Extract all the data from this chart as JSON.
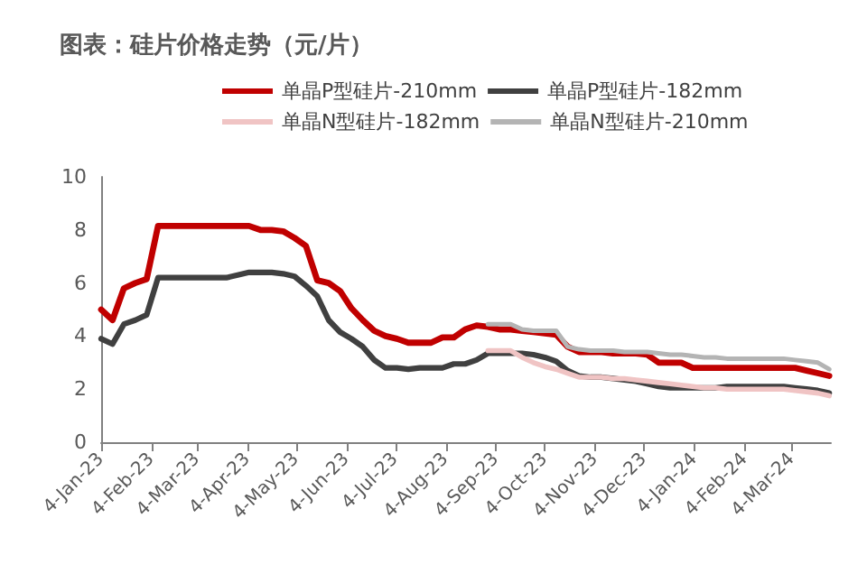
{
  "chart_data": {
    "type": "line",
    "title": "图表：硅片价格走势（元/片）",
    "x": [
      "2023-01-04",
      "2023-01-11",
      "2023-01-18",
      "2023-01-25",
      "2023-02-01",
      "2023-02-08",
      "2023-02-15",
      "2023-02-22",
      "2023-03-01",
      "2023-03-08",
      "2023-03-15",
      "2023-03-22",
      "2023-03-29",
      "2023-04-05",
      "2023-04-12",
      "2023-04-19",
      "2023-04-26",
      "2023-05-03",
      "2023-05-10",
      "2023-05-17",
      "2023-05-24",
      "2023-05-31",
      "2023-06-07",
      "2023-06-14",
      "2023-06-21",
      "2023-06-28",
      "2023-07-05",
      "2023-07-12",
      "2023-07-19",
      "2023-07-26",
      "2023-08-02",
      "2023-08-09",
      "2023-08-16",
      "2023-08-23",
      "2023-08-30",
      "2023-09-06",
      "2023-09-13",
      "2023-09-20",
      "2023-09-27",
      "2023-10-04",
      "2023-10-11",
      "2023-10-18",
      "2023-10-25",
      "2023-11-01",
      "2023-11-08",
      "2023-11-15",
      "2023-11-22",
      "2023-11-29",
      "2023-12-06",
      "2023-12-13",
      "2023-12-20",
      "2023-12-27",
      "2024-01-03",
      "2024-01-10",
      "2024-01-17",
      "2024-01-24",
      "2024-01-31",
      "2024-02-07",
      "2024-02-14",
      "2024-02-21",
      "2024-02-28",
      "2024-03-06",
      "2024-03-13",
      "2024-03-20",
      "2024-03-27"
    ],
    "series": [
      {
        "name": "单晶P型硅片-210mm",
        "color": "#c00000",
        "values": [
          5.0,
          4.6,
          5.8,
          6.0,
          6.15,
          8.15,
          8.15,
          8.15,
          8.15,
          8.15,
          8.15,
          8.15,
          8.15,
          8.15,
          8.0,
          8.0,
          7.95,
          7.7,
          7.4,
          6.1,
          6.0,
          5.7,
          5.05,
          4.6,
          4.2,
          4.0,
          3.9,
          3.75,
          3.75,
          3.75,
          3.95,
          3.95,
          4.25,
          4.4,
          4.35,
          4.25,
          4.25,
          4.2,
          4.15,
          4.1,
          4.05,
          3.6,
          3.4,
          3.4,
          3.4,
          3.35,
          3.35,
          3.35,
          3.3,
          3.0,
          3.0,
          3.0,
          2.8,
          2.8,
          2.8,
          2.8,
          2.8,
          2.8,
          2.8,
          2.8,
          2.8,
          2.8,
          2.7,
          2.6,
          2.5
        ]
      },
      {
        "name": "单晶P型硅片-182mm",
        "color": "#404040",
        "values": [
          3.9,
          3.7,
          4.45,
          4.6,
          4.8,
          6.2,
          6.2,
          6.2,
          6.2,
          6.2,
          6.2,
          6.2,
          6.3,
          6.4,
          6.4,
          6.4,
          6.35,
          6.25,
          5.9,
          5.5,
          4.6,
          4.15,
          3.9,
          3.6,
          3.1,
          2.8,
          2.8,
          2.75,
          2.8,
          2.8,
          2.8,
          2.95,
          2.95,
          3.1,
          3.35,
          3.35,
          3.35,
          3.35,
          3.3,
          3.2,
          3.05,
          2.7,
          2.5,
          2.45,
          2.45,
          2.4,
          2.35,
          2.3,
          2.2,
          2.1,
          2.05,
          2.05,
          2.05,
          2.05,
          2.05,
          2.1,
          2.1,
          2.1,
          2.1,
          2.1,
          2.1,
          2.05,
          2.0,
          1.95,
          1.85
        ]
      },
      {
        "name": "单晶N型硅片-182mm",
        "color": "#f0c4c4",
        "values": [
          null,
          null,
          null,
          null,
          null,
          null,
          null,
          null,
          null,
          null,
          null,
          null,
          null,
          null,
          null,
          null,
          null,
          null,
          null,
          null,
          null,
          null,
          null,
          null,
          null,
          null,
          null,
          null,
          null,
          null,
          null,
          null,
          null,
          null,
          3.45,
          3.45,
          3.45,
          3.2,
          3.0,
          2.85,
          2.75,
          2.6,
          2.45,
          2.45,
          2.45,
          2.4,
          2.4,
          2.35,
          2.3,
          2.25,
          2.2,
          2.15,
          2.1,
          2.05,
          2.05,
          2.0,
          2.0,
          2.0,
          2.0,
          2.0,
          2.0,
          1.95,
          1.9,
          1.85,
          1.75
        ]
      },
      {
        "name": "单晶N型硅片-210mm",
        "color": "#b4b4b4",
        "values": [
          null,
          null,
          null,
          null,
          null,
          null,
          null,
          null,
          null,
          null,
          null,
          null,
          null,
          null,
          null,
          null,
          null,
          null,
          null,
          null,
          null,
          null,
          null,
          null,
          null,
          null,
          null,
          null,
          null,
          null,
          null,
          null,
          null,
          null,
          4.45,
          4.45,
          4.45,
          4.25,
          4.2,
          4.2,
          4.2,
          3.6,
          3.5,
          3.45,
          3.45,
          3.45,
          3.4,
          3.4,
          3.4,
          3.35,
          3.3,
          3.3,
          3.25,
          3.2,
          3.2,
          3.15,
          3.15,
          3.15,
          3.15,
          3.15,
          3.15,
          3.1,
          3.05,
          3.0,
          2.75
        ]
      }
    ],
    "xlim": [
      "2023-01-04",
      "2024-03-28"
    ],
    "xticks": [
      {
        "value": "2023-01-04",
        "label": "4-Jan-23"
      },
      {
        "value": "2023-02-04",
        "label": "4-Feb-23"
      },
      {
        "value": "2023-03-04",
        "label": "4-Mar-23"
      },
      {
        "value": "2023-04-04",
        "label": "4-Apr-23"
      },
      {
        "value": "2023-05-04",
        "label": "4-May-23"
      },
      {
        "value": "2023-06-04",
        "label": "4-Jun-23"
      },
      {
        "value": "2023-07-04",
        "label": "4-Jul-23"
      },
      {
        "value": "2023-08-04",
        "label": "4-Aug-23"
      },
      {
        "value": "2023-09-04",
        "label": "4-Sep-23"
      },
      {
        "value": "2023-10-04",
        "label": "4-Oct-23"
      },
      {
        "value": "2023-11-04",
        "label": "4-Nov-23"
      },
      {
        "value": "2023-12-04",
        "label": "4-Dec-23"
      },
      {
        "value": "2024-01-04",
        "label": "4-Jan-24"
      },
      {
        "value": "2024-02-04",
        "label": "4-Feb-24"
      },
      {
        "value": "2024-03-04",
        "label": "4-Mar-24"
      }
    ],
    "ylim": [
      0,
      10
    ],
    "yticks": [
      0,
      2,
      4,
      6,
      8,
      10
    ],
    "grid": false,
    "legend": "top",
    "marker": "none",
    "line_style": "solid"
  }
}
